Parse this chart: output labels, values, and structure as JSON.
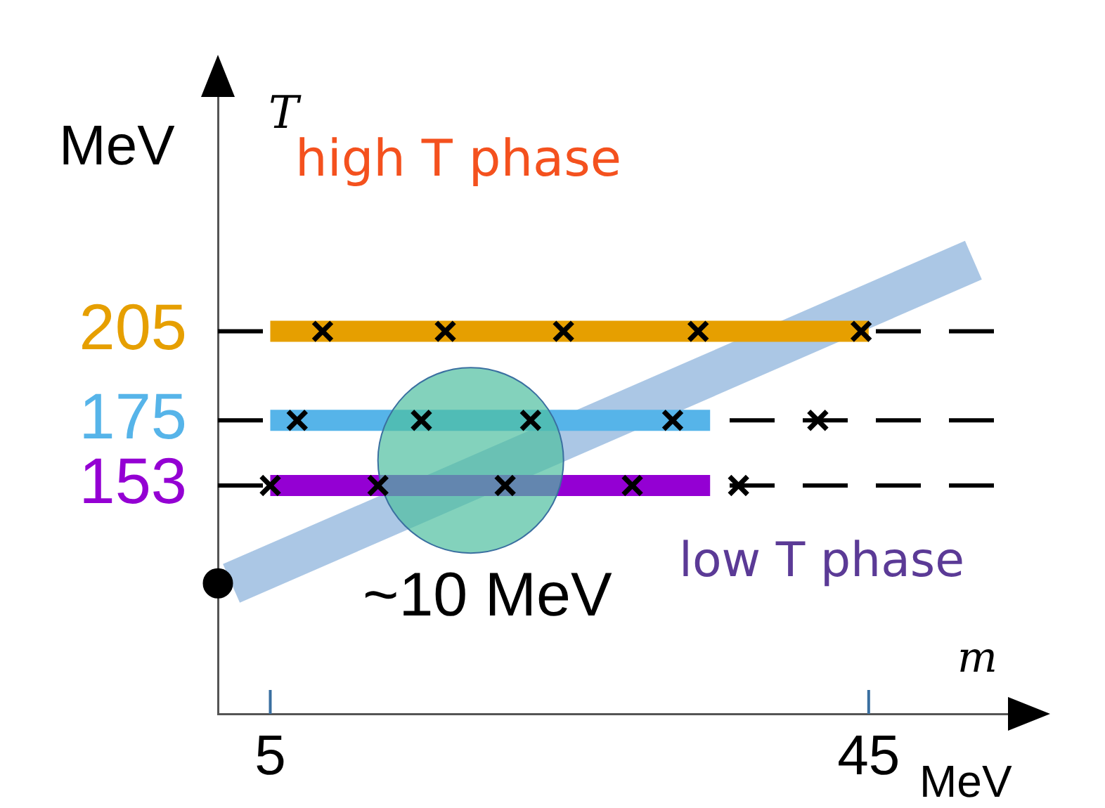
{
  "chart_data": {
    "type": "line",
    "xlabel": "m",
    "ylabel": "T",
    "xlim": [
      1.5,
      54.5
    ],
    "ylim": [
      76,
      285
    ],
    "xticks": [
      5,
      45
    ],
    "yticks": [
      153,
      175,
      205
    ],
    "series": [
      {
        "type": "line",
        "color": "#8fb4dc",
        "x": [
          2.4,
          52
        ],
        "values": [
          120,
          229
        ]
      },
      {
        "color": "#e69f00",
        "x": [
          5,
          45
        ],
        "values": [
          205,
          205
        ]
      },
      {
        "type": "line",
        "color": "#56b4e9",
        "x": [
          5,
          34.4
        ],
        "values": [
          175,
          175
        ]
      },
      {
        "type": "line",
        "color": "#9400d3",
        "x": [
          5,
          34.4
        ],
        "values": [
          153,
          153
        ]
      },
      {
        "type": "bubble",
        "color": "#4fbf9f",
        "x": [
          18.4
        ],
        "values": [
          161.5
        ],
        "sizes": [
          1
        ]
      },
      {
        "type": "scatter",
        "color": "#000000",
        "marker": "cross",
        "x": [
          8.5,
          16.7,
          24.6,
          33.6,
          44.5,
          6.8,
          15.1,
          22.4,
          31.9,
          41.6,
          5,
          12.2,
          20.7,
          29.2,
          36.3
        ],
        "values": [
          205,
          205,
          205,
          205,
          205,
          175,
          175,
          175,
          175,
          175,
          153,
          153,
          153,
          153,
          153
        ]
      },
      {
        "type": "scatter",
        "color": "#000000",
        "marker": "circle",
        "x": [
          1.5
        ],
        "values": [
          120
        ]
      }
    ],
    "ref_lines": [
      {
        "axis": "y",
        "value": 153,
        "line_style": "dashed"
      },
      {
        "axis": "y",
        "value": 175,
        "line_style": "dashed"
      },
      {
        "axis": "y",
        "value": 205,
        "line_style": "dashed"
      }
    ],
    "annotations": [
      "high T phase",
      "low T phase",
      "~10 MeV",
      "MeV",
      "MeV"
    ],
    "grid": false,
    "legend": false
  }
}
